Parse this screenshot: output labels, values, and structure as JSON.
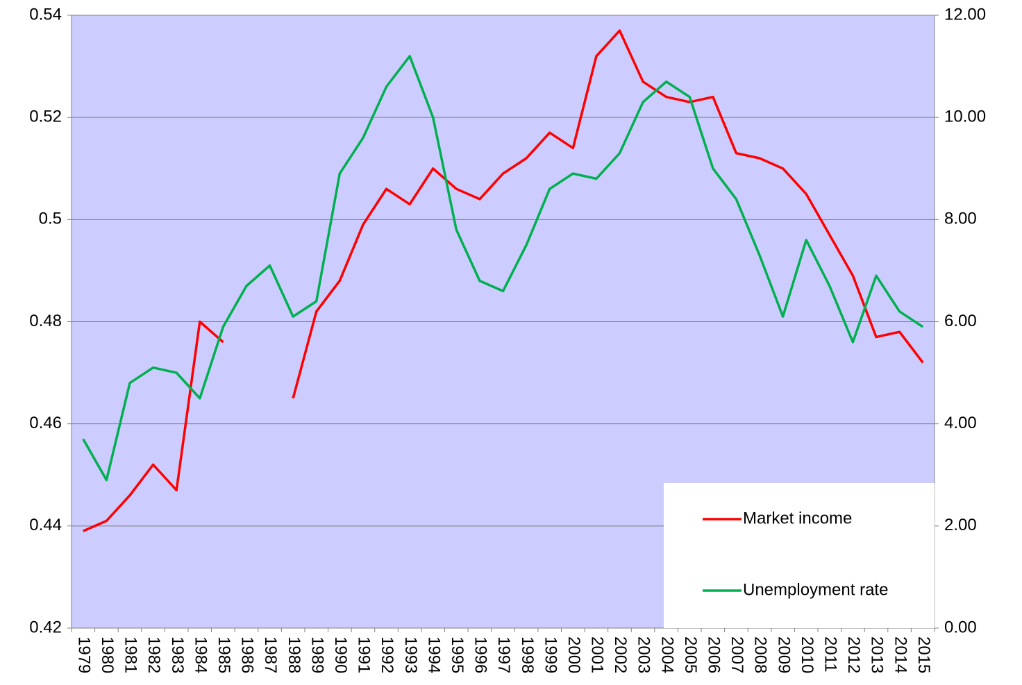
{
  "chart_data": {
    "type": "line",
    "categories": [
      "1979",
      "1980",
      "1981",
      "1982",
      "1983",
      "1984",
      "1985",
      "1986",
      "1987",
      "1988",
      "1989",
      "1990",
      "1991",
      "1992",
      "1993",
      "1994",
      "1995",
      "1996",
      "1997",
      "1998",
      "1999",
      "2000",
      "2001",
      "2002",
      "2003",
      "2004",
      "2005",
      "2006",
      "2007",
      "2008",
      "2009",
      "2010",
      "2011",
      "2012",
      "2013",
      "2014",
      "2015"
    ],
    "series": [
      {
        "name": "Market income",
        "color": "#ff0000",
        "values": [
          0.439,
          0.441,
          0.446,
          0.452,
          0.447,
          0.48,
          0.476,
          null,
          null,
          0.465,
          0.482,
          0.488,
          0.499,
          0.506,
          0.503,
          0.51,
          0.506,
          0.504,
          0.509,
          0.512,
          0.517,
          0.514,
          0.532,
          0.537,
          0.527,
          0.524,
          0.523,
          0.524,
          0.513,
          0.512,
          0.51,
          0.505,
          0.497,
          0.489,
          0.477,
          0.478,
          0.472
        ]
      },
      {
        "name": "Unemployment rate",
        "color": "#00b050",
        "axis": "y2",
        "values": [
          3.7,
          2.9,
          4.8,
          5.1,
          5.0,
          4.5,
          5.9,
          6.7,
          7.1,
          6.1,
          6.4,
          8.9,
          9.6,
          10.6,
          11.2,
          10.0,
          7.8,
          6.8,
          6.6,
          7.5,
          8.6,
          8.9,
          8.8,
          9.3,
          10.3,
          10.7,
          10.4,
          9.0,
          8.4,
          7.3,
          6.1,
          7.6,
          6.7,
          5.6,
          6.9,
          6.2,
          5.9
        ]
      }
    ],
    "ylim": [
      0.42,
      0.54
    ],
    "yticks": [
      0.42,
      0.44,
      0.46,
      0.48,
      0.5,
      0.52,
      0.54
    ],
    "y2lim": [
      0,
      12
    ],
    "y2ticks": [
      {
        "value": 0,
        "label": "0.00"
      },
      {
        "value": 2,
        "label": "2.00"
      },
      {
        "value": 4,
        "label": "4.00"
      },
      {
        "value": 6,
        "label": "6.00"
      },
      {
        "value": 8,
        "label": "8.00"
      },
      {
        "value": 10,
        "label": "10.00"
      },
      {
        "value": 12,
        "label": "12.00"
      }
    ],
    "grid": true,
    "legend": "lower right",
    "background": "#ccccff"
  }
}
